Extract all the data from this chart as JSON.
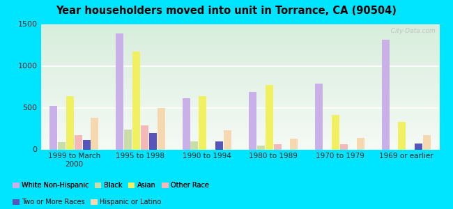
{
  "title": "Year householders moved into unit in Torrance, CA (90504)",
  "categories": [
    "1999 to March\n2000",
    "1995 to 1998",
    "1990 to 1994",
    "1980 to 1989",
    "1970 to 1979",
    "1969 or earlier"
  ],
  "series": {
    "White Non-Hispanic": [
      520,
      1390,
      610,
      690,
      790,
      1310
    ],
    "Black": [
      90,
      240,
      95,
      50,
      0,
      0
    ],
    "Asian": [
      640,
      1175,
      640,
      770,
      410,
      330
    ],
    "Other Race": [
      170,
      290,
      0,
      60,
      65,
      0
    ],
    "Two or More Races": [
      110,
      195,
      100,
      0,
      0,
      70
    ],
    "Hispanic or Latino": [
      380,
      500,
      230,
      130,
      140,
      175
    ]
  },
  "colors": {
    "White Non-Hispanic": "#c9b0e8",
    "Black": "#c8dda8",
    "Asian": "#f0f060",
    "Other Race": "#f5b8b8",
    "Two or More Races": "#5555bb",
    "Hispanic or Latino": "#f5d8b0"
  },
  "ylim": [
    0,
    1500
  ],
  "yticks": [
    0,
    500,
    1000,
    1500
  ],
  "outer_background": "#00e5ff",
  "watermark": "  City-Data.com"
}
